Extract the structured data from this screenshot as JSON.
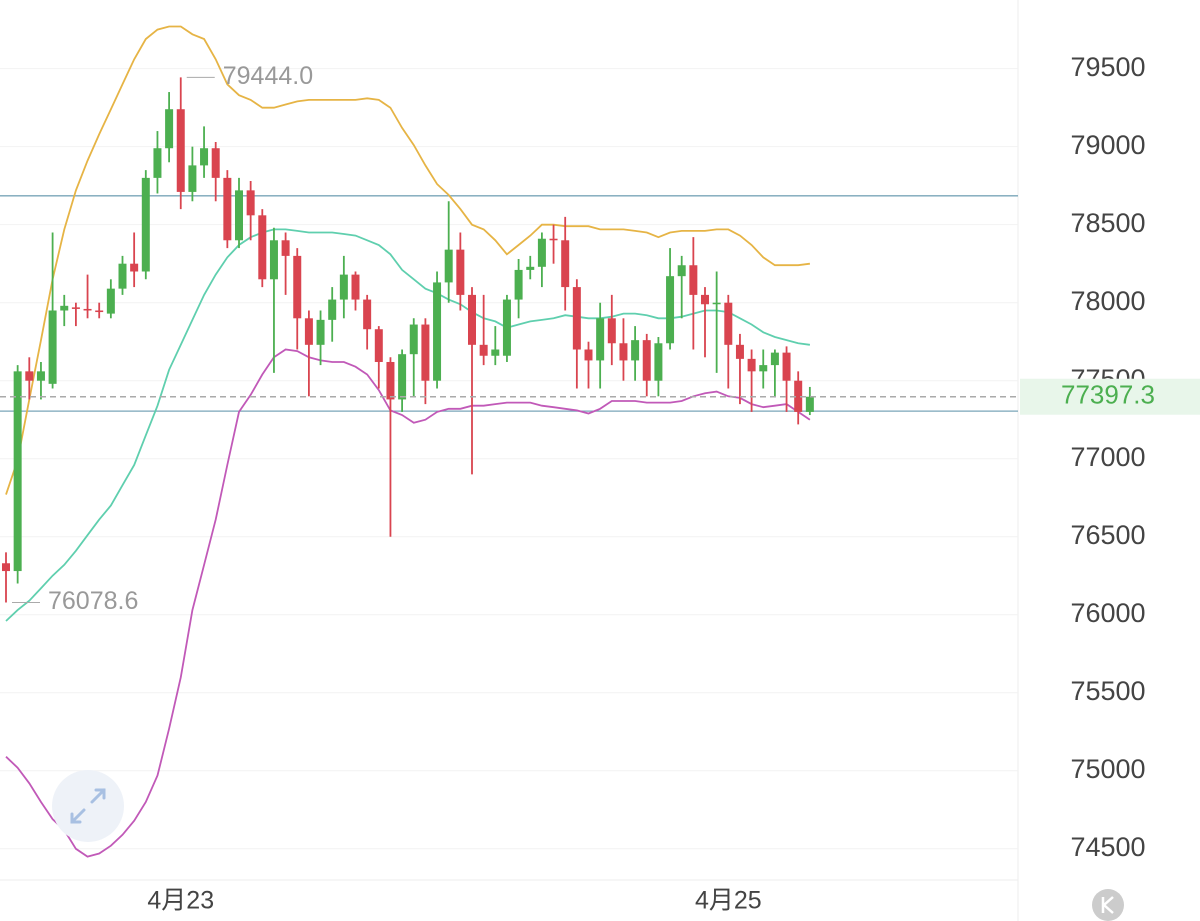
{
  "chart_data": {
    "type": "candlestick",
    "categories": [
      null,
      null,
      null,
      null,
      null,
      null,
      null,
      null,
      null,
      null,
      null,
      null,
      null,
      null,
      null,
      "4月23",
      null,
      null,
      null,
      null,
      null,
      null,
      null,
      null,
      null,
      null,
      null,
      null,
      null,
      null,
      null,
      null,
      null,
      null,
      null,
      null,
      null,
      null,
      null,
      null,
      null,
      null,
      null,
      null,
      null,
      null,
      null,
      null,
      null,
      null,
      null,
      null,
      null,
      null,
      null,
      null,
      null,
      null,
      null,
      null,
      null,
      null,
      "4月25",
      null,
      null,
      null,
      null,
      null,
      null,
      null
    ],
    "open": [
      76330,
      76280,
      77560,
      77500,
      77480,
      77950,
      77970,
      77960,
      77950,
      77930,
      78090,
      78250,
      78200,
      78800,
      78990,
      79240,
      78710,
      78880,
      78990,
      78800,
      78400,
      78720,
      78560,
      78150,
      78400,
      78300,
      77900,
      77730,
      77890,
      78020,
      78180,
      78020,
      77830,
      77620,
      77380,
      77670,
      77860,
      77500,
      78130,
      78340,
      78050,
      77730,
      77660,
      77660,
      78020,
      78210,
      78230,
      78410,
      78400,
      78100,
      77700,
      77630,
      77900,
      77740,
      77630,
      77760,
      77500,
      77740,
      78170,
      78240,
      78050,
      77990,
      78000,
      77730,
      77640,
      77560,
      77600,
      77680,
      77500,
      77300
    ],
    "high": [
      76400,
      77600,
      77650,
      77620,
      78450,
      78050,
      78000,
      78180,
      78000,
      78150,
      78300,
      78450,
      78850,
      79100,
      79350,
      79444,
      79000,
      79130,
      79030,
      78850,
      78800,
      78780,
      78600,
      78480,
      78450,
      78350,
      77950,
      77950,
      78100,
      78300,
      78200,
      78050,
      77850,
      77650,
      77700,
      77900,
      77900,
      78200,
      78650,
      78450,
      78100,
      78050,
      77850,
      78050,
      78280,
      78300,
      78450,
      78500,
      78550,
      78150,
      77750,
      78000,
      78050,
      77900,
      77850,
      77800,
      77780,
      78350,
      78300,
      78420,
      78100,
      78200,
      78050,
      77800,
      77700,
      77700,
      77700,
      77720,
      77560,
      77460
    ],
    "low": [
      76078.6,
      76200,
      77380,
      77380,
      77450,
      77850,
      77850,
      77900,
      77900,
      77900,
      78050,
      78100,
      78150,
      78700,
      78900,
      78600,
      78650,
      78800,
      78650,
      78350,
      78350,
      78400,
      78100,
      77550,
      78050,
      77700,
      77400,
      77600,
      77750,
      77900,
      77950,
      77700,
      77450,
      76500,
      77300,
      77400,
      77350,
      77450,
      78000,
      77950,
      76900,
      77600,
      77600,
      77620,
      77900,
      78150,
      78100,
      78250,
      77950,
      77450,
      77450,
      77450,
      77600,
      77500,
      77500,
      77400,
      77400,
      77700,
      77900,
      77700,
      77650,
      77550,
      77450,
      77350,
      77300,
      77450,
      77400,
      77300,
      77220,
      77280
    ],
    "close": [
      76280,
      77560,
      77500,
      77560,
      77950,
      77980,
      77960,
      77950,
      77940,
      78090,
      78250,
      78200,
      78800,
      78990,
      79240,
      78710,
      78880,
      78990,
      78800,
      78400,
      78720,
      78560,
      78150,
      78400,
      78300,
      77900,
      77730,
      77890,
      78020,
      78180,
      78020,
      77830,
      77620,
      77380,
      77670,
      77860,
      77500,
      78130,
      78340,
      78050,
      77730,
      77660,
      77700,
      78020,
      78210,
      78230,
      78410,
      78400,
      78100,
      77700,
      77630,
      77900,
      77740,
      77630,
      77760,
      77500,
      77740,
      78170,
      78240,
      78050,
      77990,
      78000,
      77730,
      77640,
      77560,
      77600,
      77680,
      77500,
      77300,
      77397.3
    ],
    "up_color": "#4caf50",
    "down_color": "#d9444f",
    "bands": [
      {
        "color": "#e6b445",
        "values": [
          76770,
          76990,
          77380,
          77760,
          78150,
          78470,
          78720,
          78910,
          79080,
          79240,
          79400,
          79560,
          79690,
          79750,
          79770,
          79770,
          79720,
          79690,
          79560,
          79400,
          79330,
          79300,
          79250,
          79250,
          79270,
          79290,
          79300,
          79300,
          79300,
          79300,
          79300,
          79310,
          79300,
          79250,
          79120,
          79010,
          78880,
          78760,
          78690,
          78600,
          78500,
          78470,
          78400,
          78310,
          78370,
          78430,
          78500,
          78500,
          78490,
          78490,
          78490,
          78470,
          78470,
          78470,
          78460,
          78450,
          78420,
          78450,
          78460,
          78460,
          78460,
          78470,
          78470,
          78430,
          78370,
          78290,
          78240,
          78240,
          78240,
          78250
        ]
      },
      {
        "color": "#5fcfae",
        "values": [
          75960,
          76030,
          76090,
          76170,
          76250,
          76320,
          76410,
          76510,
          76610,
          76700,
          76830,
          76960,
          77150,
          77340,
          77570,
          77730,
          77890,
          78050,
          78180,
          78290,
          78370,
          78420,
          78450,
          78470,
          78470,
          78460,
          78450,
          78450,
          78450,
          78440,
          78430,
          78400,
          78370,
          78310,
          78210,
          78150,
          78090,
          78060,
          78020,
          77990,
          77940,
          77900,
          77880,
          77840,
          77860,
          77880,
          77890,
          77900,
          77920,
          77910,
          77900,
          77900,
          77910,
          77930,
          77930,
          77920,
          77900,
          77900,
          77910,
          77930,
          77950,
          77950,
          77940,
          77900,
          77860,
          77810,
          77780,
          77760,
          77740,
          77730
        ]
      },
      {
        "color": "#c159b8",
        "values": [
          75090,
          75020,
          74920,
          74800,
          74690,
          74620,
          74500,
          74450,
          74470,
          74520,
          74590,
          74680,
          74800,
          74970,
          75270,
          75600,
          76030,
          76320,
          76610,
          76960,
          77300,
          77410,
          77540,
          77650,
          77700,
          77690,
          77650,
          77630,
          77620,
          77620,
          77590,
          77540,
          77440,
          77310,
          77280,
          77230,
          77250,
          77300,
          77320,
          77320,
          77340,
          77340,
          77350,
          77360,
          77360,
          77360,
          77340,
          77330,
          77320,
          77310,
          77290,
          77320,
          77370,
          77370,
          77370,
          77360,
          77360,
          77360,
          77370,
          77400,
          77420,
          77430,
          77400,
          77390,
          77350,
          77330,
          77340,
          77350,
          77300,
          77250
        ]
      }
    ],
    "hlines": [
      {
        "value": 78685,
        "color": "#7aa6b8"
      },
      {
        "value": 77305,
        "color": "#7aa6b8"
      }
    ],
    "annotations": [
      {
        "value": 79444,
        "label": "79444.0"
      },
      {
        "value": 76078.6,
        "label": "76078.6"
      }
    ],
    "ylim": [
      74300,
      79940
    ],
    "yticks": [
      74500,
      75000,
      75500,
      76000,
      76500,
      77000,
      77500,
      78000,
      78500,
      79000,
      79500
    ],
    "grid": true
  }
}
